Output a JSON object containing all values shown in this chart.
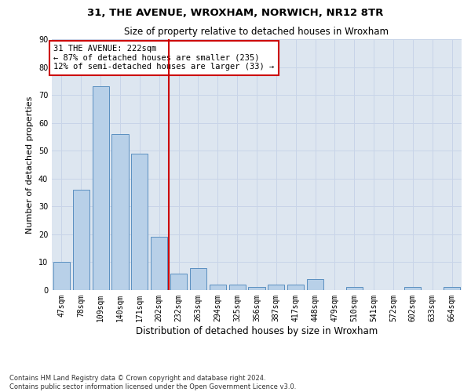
{
  "title": "31, THE AVENUE, WROXHAM, NORWICH, NR12 8TR",
  "subtitle": "Size of property relative to detached houses in Wroxham",
  "xlabel_bottom": "Distribution of detached houses by size in Wroxham",
  "ylabel": "Number of detached properties",
  "categories": [
    "47sqm",
    "78sqm",
    "109sqm",
    "140sqm",
    "171sqm",
    "202sqm",
    "232sqm",
    "263sqm",
    "294sqm",
    "325sqm",
    "356sqm",
    "387sqm",
    "417sqm",
    "448sqm",
    "479sqm",
    "510sqm",
    "541sqm",
    "572sqm",
    "602sqm",
    "633sqm",
    "664sqm"
  ],
  "values": [
    10,
    36,
    73,
    56,
    49,
    19,
    6,
    8,
    2,
    2,
    1,
    2,
    2,
    4,
    0,
    1,
    0,
    0,
    1,
    0,
    1
  ],
  "bar_color": "#b8d0e8",
  "bar_edge_color": "#5a8fc0",
  "grid_color": "#c8d4e8",
  "background_color": "#dde6f0",
  "vline_color": "#cc0000",
  "vline_x_index": 5.5,
  "annotation_text": "31 THE AVENUE: 222sqm\n← 87% of detached houses are smaller (235)\n12% of semi-detached houses are larger (33) →",
  "annotation_box_color": "#ffffff",
  "annotation_box_edge": "#cc0000",
  "ylim": [
    0,
    90
  ],
  "yticks": [
    0,
    10,
    20,
    30,
    40,
    50,
    60,
    70,
    80,
    90
  ],
  "footer": "Contains HM Land Registry data © Crown copyright and database right 2024.\nContains public sector information licensed under the Open Government Licence v3.0.",
  "title_fontsize": 9.5,
  "subtitle_fontsize": 8.5,
  "tick_fontsize": 7,
  "ylabel_fontsize": 8,
  "xlabel_fontsize": 8.5,
  "annotation_fontsize": 7.5,
  "footer_fontsize": 6
}
